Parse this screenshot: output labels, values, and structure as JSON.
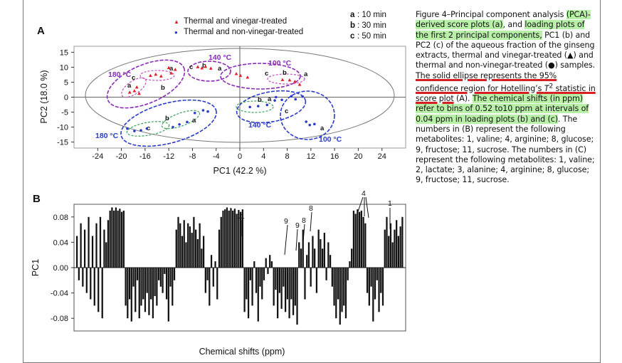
{
  "panel_a": {
    "label": "A",
    "legend": [
      {
        "marker": "▲",
        "text": "Thermal and vinegar-treated",
        "color": "#e0202a"
      },
      {
        "marker": "●",
        "text": "Thermal and non-vinegar-treated",
        "color": "#2a3cc8"
      }
    ],
    "time_key": [
      {
        "letter": "a",
        "text": ": 10 min"
      },
      {
        "letter": "b",
        "text": ": 30 min"
      },
      {
        "letter": "c",
        "text": ": 50 min"
      }
    ],
    "group_labels": [
      "140 °C",
      "100 °C",
      "180 °C",
      "140 °C",
      "100 °C",
      "180 °C"
    ]
  },
  "panel_b": {
    "label": "B",
    "peak_labels": [
      "11",
      "9",
      "9",
      "8",
      "8",
      "4",
      "1"
    ]
  },
  "caption": {
    "p1": "Figure 4–Principal component analysis ",
    "p2": "(PCA)-derived score plots (a)",
    "p3": ", and ",
    "p4": "loading plots of the first 2 principal components,",
    "p5": " PC1 (b) and PC2 (c) of the aqueous fraction of the ginseng extracts, thermal and vinegar-treated (▲) and thermal and non-vinegar-treated (●) samples. ",
    "p6": "The solid ellipse represents the 95% confidence region for Hotelling’s ",
    "p6b": "T",
    "p6c": "2",
    "p6d": " statistic in score plot",
    "p7": " (A). ",
    "p8": "The chemical shifts (in ppm) refer to bins of 0.52 to10 ppm at intervals of 0.04 ppm in loading plots (b) and (c)",
    "p9": ". The numbers in (B) represent the following metabolites: 1, valine; 4, arginine; 8, glucose; 9, fructose; 11, sucrose. The numbers in (C) represent the following metabolites: 1, valine; 2, lactate; 3, alanine; 4, arginine; 8, glucose; 9, fructose; 11, sucrose."
  },
  "chart_data": [
    {
      "type": "scatter",
      "title": "",
      "xlabel": "PC1 (42.2 %)",
      "ylabel": "PC2 (18.0 %)",
      "xlim": [
        -28,
        28
      ],
      "ylim": [
        -17,
        17
      ],
      "xticks": [
        -24,
        -20,
        -16,
        -12,
        -8,
        -4,
        0,
        4,
        8,
        12,
        16,
        20,
        24
      ],
      "yticks": [
        15,
        10,
        5,
        0,
        -5,
        -10,
        -15
      ],
      "legend_position": "top-left",
      "series": [
        {
          "name": "Thermal and vinegar-treated",
          "color": "#e0202a",
          "marker": "triangle",
          "points": [
            [
              -18.6,
              1.6
            ],
            [
              -17.8,
              2.1
            ],
            [
              -17.0,
              1.2
            ],
            [
              -17.4,
              3.3
            ],
            [
              -15.1,
              7.2
            ],
            [
              -14.2,
              7.6
            ],
            [
              -13.3,
              7.0
            ],
            [
              -12.0,
              9.8
            ],
            [
              -10.9,
              9.2
            ],
            [
              -11.6,
              8.0
            ],
            [
              -7.1,
              10.1
            ],
            [
              -6.4,
              9.7
            ],
            [
              -5.8,
              10.2
            ],
            [
              -4.9,
              9.6
            ],
            [
              -0.6,
              7.8
            ],
            [
              0.1,
              7.2
            ],
            [
              1.3,
              6.6
            ],
            [
              7.2,
              5.8
            ],
            [
              8.4,
              5.7
            ],
            [
              9.3,
              5.2
            ],
            [
              10.1,
              4.2
            ]
          ]
        },
        {
          "name": "Thermal and non-vinegar-treated",
          "color": "#2a3cc8",
          "marker": "circle",
          "points": [
            [
              -19.0,
              -10.5
            ],
            [
              -17.8,
              -11.3
            ],
            [
              -16.7,
              -11.1
            ],
            [
              -15.7,
              -10.5
            ],
            [
              -11.3,
              -10.0
            ],
            [
              -10.2,
              -9.1
            ],
            [
              -8.9,
              -8.3
            ],
            [
              -7.6,
              -5.3
            ],
            [
              -6.2,
              -4.4
            ],
            [
              -5.4,
              -4.8
            ],
            [
              1.7,
              -3.3
            ],
            [
              3.1,
              -3.0
            ],
            [
              4.6,
              -2.6
            ],
            [
              5.9,
              -1.1
            ],
            [
              6.1,
              0.0
            ],
            [
              7.1,
              -0.9
            ],
            [
              8.7,
              0.3
            ],
            [
              9.4,
              -0.7
            ],
            [
              10.6,
              0.2
            ],
            [
              11.2,
              -8.2
            ],
            [
              11.8,
              -9.3
            ],
            [
              12.6,
              -9.0
            ]
          ]
        }
      ]
    },
    {
      "type": "bar",
      "title": "",
      "xlabel": "Chemical shifts (ppm)",
      "ylabel": "PC1",
      "ylim": [
        -0.1,
        0.1
      ],
      "yticks": [
        0.08,
        0.04,
        0.0,
        -0.04,
        -0.08
      ],
      "series": [
        {
          "name": "",
          "values": [
            0.05,
            -0.02,
            0.07,
            -0.03,
            0.06,
            -0.04,
            0.08,
            -0.05,
            0.05,
            -0.06,
            0.07,
            -0.07,
            0.08,
            -0.08,
            0.06,
            0.04,
            0.075,
            0.09,
            0.095,
            0.09,
            0.095,
            0.09,
            0.093,
            0.088,
            0.09,
            -0.06,
            -0.08,
            -0.05,
            -0.085,
            -0.03,
            -0.07,
            -0.02,
            -0.08,
            -0.06,
            -0.05,
            -0.07,
            -0.04,
            -0.075,
            -0.05,
            -0.08,
            -0.045,
            -0.06,
            -0.02,
            -0.03,
            -0.04,
            -0.01,
            -0.05,
            -0.085,
            -0.03,
            -0.06,
            -0.02,
            0.06,
            0.08,
            0.07,
            0.05,
            0.075,
            0.04,
            0.07,
            0.065,
            0.055,
            0.08,
            0.06,
            0.045,
            0.07,
            0.03,
            0.05,
            -0.04,
            -0.02,
            -0.06,
            0.02,
            -0.03,
            0.01,
            -0.05,
            0.06,
            0.08,
            0.09,
            0.092,
            0.095,
            0.09,
            0.094,
            0.09,
            0.093,
            0.085,
            0.091,
            0.088,
            0.092,
            -0.07,
            -0.05,
            -0.08,
            -0.02,
            -0.06,
            0.01,
            -0.04,
            -0.085,
            -0.03,
            -0.05,
            -0.02,
            0.015,
            -0.01,
            0.02,
            0.01,
            -0.06,
            -0.035,
            -0.08,
            -0.04,
            -0.065,
            -0.03,
            -0.07,
            -0.05,
            -0.08,
            -0.05,
            -0.075,
            -0.06,
            -0.09,
            0.04,
            0.03,
            0.06,
            -0.05,
            0.02,
            0.04,
            -0.03,
            0.05,
            0.03,
            -0.04,
            0.06,
            0.045,
            0.03,
            0.055,
            -0.02,
            0.04,
            0.02,
            -0.03,
            -0.06,
            -0.08,
            -0.05,
            -0.09,
            -0.07,
            -0.06,
            -0.08,
            -0.02,
            0.01,
            0.03,
            0.09,
            0.085,
            0.092,
            0.088,
            0.09,
            0.08,
            0.07,
            -0.04,
            -0.06,
            -0.03,
            -0.085,
            -0.05,
            -0.02,
            -0.07,
            -0.04,
            -0.06,
            0.06,
            0.08,
            0.05,
            0.07,
            0.04,
            0.06,
            0.075,
            0.05,
            0.065,
            0.08
          ]
        }
      ]
    }
  ]
}
